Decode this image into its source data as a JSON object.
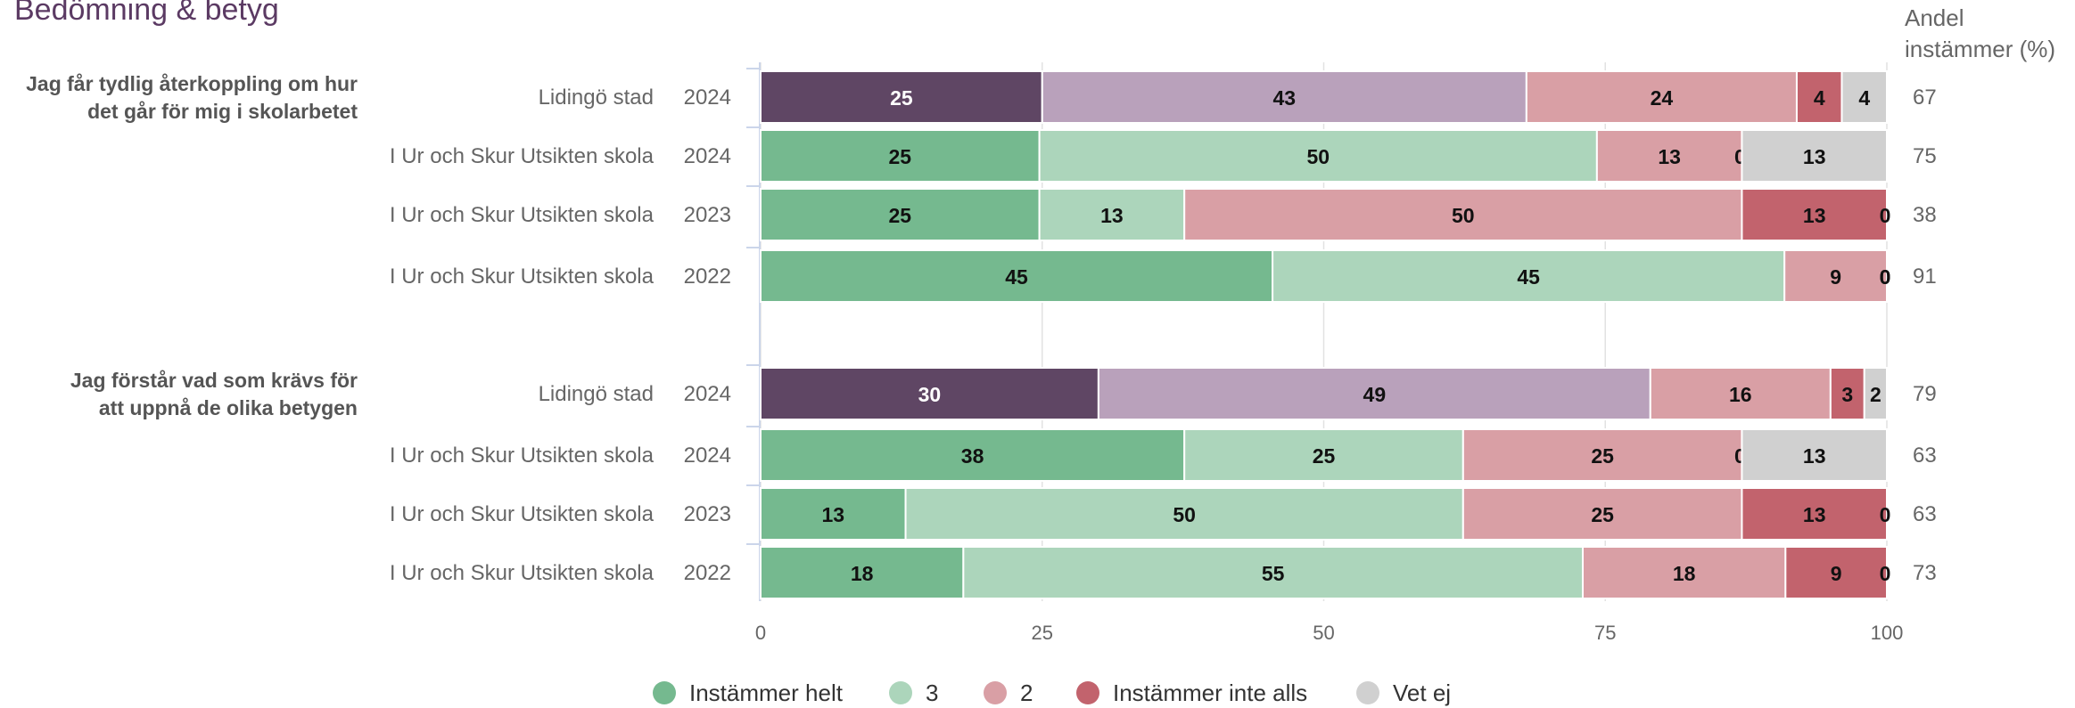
{
  "page": {
    "title": "Bedömning & betyg"
  },
  "andel_header": {
    "line1": "Andel",
    "line2": "instämmer (%)"
  },
  "colors": {
    "lidingo_helt": "#5f4664",
    "lidingo_3": "#b9a1bb",
    "school_helt": "#75b98f",
    "school_3": "#acd5bb",
    "two": "#d99fa5",
    "inte_alls": "#c2636d",
    "vet_ej": "#d0d0d0"
  },
  "chart_data": {
    "type": "bar",
    "orientation": "horizontal-stacked",
    "xlim": [
      0,
      100
    ],
    "xticks": [
      0,
      25,
      50,
      75,
      100
    ],
    "legend_position": "bottom",
    "legend": [
      "Instämmer helt",
      "3",
      "2",
      "Instämmer inte alls",
      "Vet ej"
    ],
    "groups": [
      {
        "question": [
          "Jag får tydlig återkoppling om hur",
          "det går för mig i skolarbetet"
        ],
        "rows": [
          {
            "entity": "Lidingö stad",
            "year": "2024",
            "lidingo": true,
            "values": [
              25,
              43,
              24,
              4,
              4
            ],
            "andel": 67
          },
          {
            "entity": "I Ur och Skur Utsikten skola",
            "year": "2024",
            "lidingo": false,
            "values": [
              25,
              50,
              13,
              0,
              13
            ],
            "andel": 75
          },
          {
            "entity": "I Ur och Skur Utsikten skola",
            "year": "2023",
            "lidingo": false,
            "values": [
              25,
              13,
              50,
              13,
              0
            ],
            "andel": 38
          },
          {
            "entity": "I Ur och Skur Utsikten skola",
            "year": "2022",
            "lidingo": false,
            "values": [
              45,
              45,
              9,
              0,
              0
            ],
            "andel": 91
          }
        ]
      },
      {
        "question": [
          "Jag förstår vad som krävs för",
          "att uppnå de olika betygen"
        ],
        "rows": [
          {
            "entity": "Lidingö stad",
            "year": "2024",
            "lidingo": true,
            "values": [
              30,
              49,
              16,
              3,
              2
            ],
            "andel": 79
          },
          {
            "entity": "I Ur och Skur Utsikten skola",
            "year": "2024",
            "lidingo": false,
            "values": [
              38,
              25,
              25,
              0,
              13
            ],
            "andel": 63
          },
          {
            "entity": "I Ur och Skur Utsikten skola",
            "year": "2023",
            "lidingo": false,
            "values": [
              13,
              50,
              25,
              13,
              0
            ],
            "andel": 63
          },
          {
            "entity": "I Ur och Skur Utsikten skola",
            "year": "2022",
            "lidingo": false,
            "values": [
              18,
              55,
              18,
              9,
              0
            ],
            "andel": 73
          }
        ]
      }
    ]
  }
}
